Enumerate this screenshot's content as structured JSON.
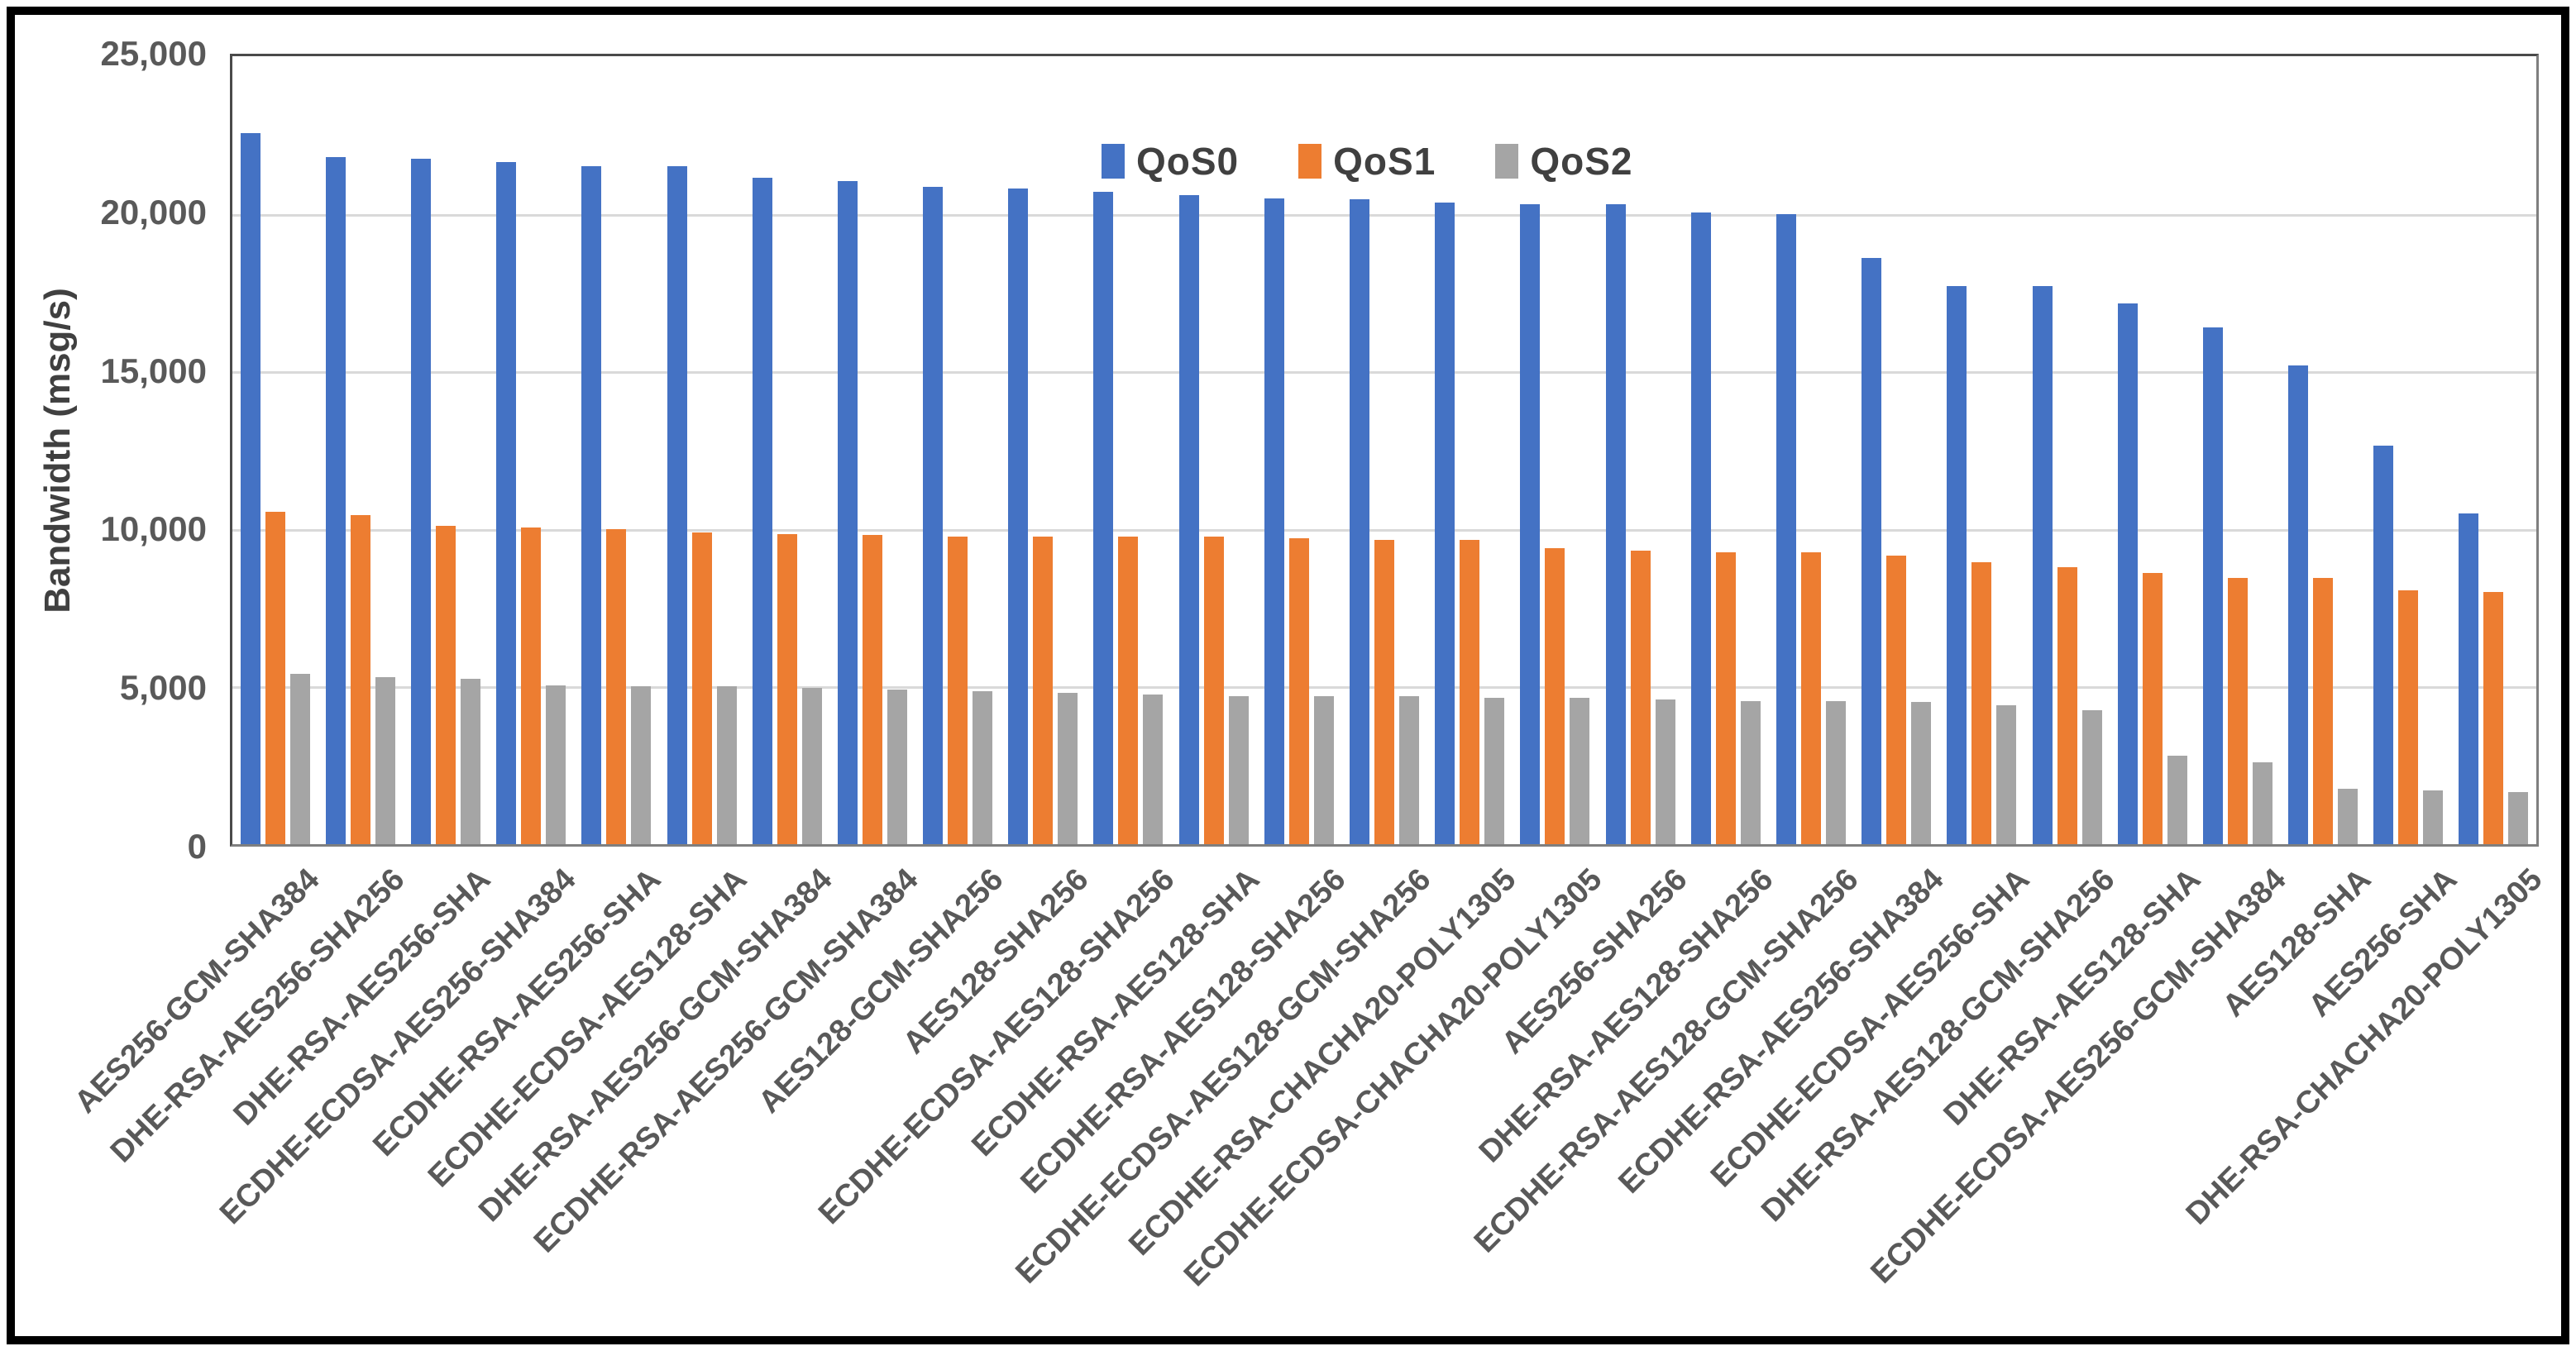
{
  "chart_data": {
    "type": "bar",
    "title": "",
    "xlabel": "",
    "ylabel": "Bandwidth (msg/s)",
    "ylim": [
      0,
      25000
    ],
    "ytick_values": [
      0,
      5000,
      10000,
      15000,
      20000,
      25000
    ],
    "ytick_labels": [
      "0",
      "5,000",
      "10,000",
      "15,000",
      "20,000",
      "25,000"
    ],
    "grid": true,
    "legend_position": "top-center",
    "categories": [
      "AES256-GCM-SHA384",
      "DHE-RSA-AES256-SHA256",
      "DHE-RSA-AES256-SHA",
      "ECDHE-ECDSA-AES256-SHA384",
      "ECDHE-RSA-AES256-SHA",
      "ECDHE-ECDSA-AES128-SHA",
      "DHE-RSA-AES256-GCM-SHA384",
      "ECDHE-RSA-AES256-GCM-SHA384",
      "AES128-GCM-SHA256",
      "AES128-SHA256",
      "ECDHE-ECDSA-AES128-SHA256",
      "ECDHE-RSA-AES128-SHA",
      "ECDHE-RSA-AES128-SHA256",
      "ECDHE-ECDSA-AES128-GCM-SHA256",
      "ECDHE-RSA-CHACHA20-POLY1305",
      "ECDHE-ECDSA-CHACHA20-POLY1305",
      "AES256-SHA256",
      "DHE-RSA-AES128-SHA256",
      "ECDHE-RSA-AES128-GCM-SHA256",
      "ECDHE-RSA-AES256-SHA384",
      "ECDHE-ECDSA-AES256-SHA",
      "DHE-RSA-AES128-GCM-SHA256",
      "DHE-RSA-AES128-SHA",
      "ECDHE-ECDSA-AES256-GCM-SHA384",
      "AES128-SHA",
      "AES256-SHA",
      "DHE-RSA-CHACHA20-POLY1305"
    ],
    "series": [
      {
        "name": "QoS0",
        "color": "#4472C4",
        "values": [
          22550,
          21800,
          21750,
          21650,
          21500,
          21500,
          21150,
          21050,
          20850,
          20800,
          20700,
          20600,
          20500,
          20450,
          20350,
          20300,
          20300,
          20050,
          20000,
          18600,
          17700,
          17700,
          17150,
          16400,
          15200,
          12650,
          10500
        ]
      },
      {
        "name": "QoS1",
        "color": "#ED7D31",
        "values": [
          10550,
          10450,
          10100,
          10050,
          10000,
          9900,
          9850,
          9800,
          9750,
          9750,
          9750,
          9750,
          9700,
          9650,
          9650,
          9400,
          9300,
          9250,
          9250,
          9150,
          8950,
          8800,
          8600,
          8450,
          8450,
          8050,
          8000
        ]
      },
      {
        "name": "QoS2",
        "color": "#A5A5A5",
        "values": [
          5400,
          5300,
          5250,
          5050,
          5000,
          5000,
          4950,
          4900,
          4850,
          4800,
          4750,
          4700,
          4700,
          4700,
          4650,
          4650,
          4600,
          4550,
          4550,
          4500,
          4400,
          4250,
          2800,
          2600,
          1750,
          1700,
          1650
        ]
      }
    ],
    "colors": {
      "gridline": "#d9d9d9",
      "axis_text": "#595959",
      "legend_text": "#404040",
      "frame_border": "#000000"
    }
  }
}
